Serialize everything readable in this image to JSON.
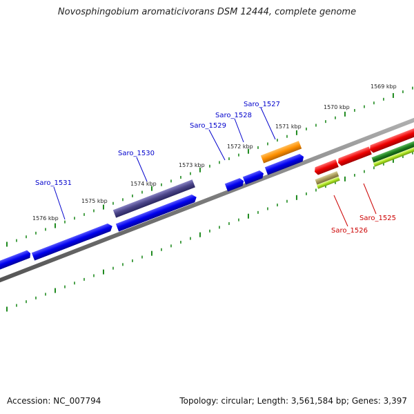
{
  "title": "Novosphingobium aromaticivorans DSM 12444, complete genome",
  "accession": "Accession: NC_007794",
  "topology": "Topology: circular; Length: 3,561,584 bp; Genes: 3,397",
  "colors": {
    "backbone": "#808080",
    "tick": "#1e8a1e",
    "label_plus": "#0000cc",
    "label_minus": "#cc0000"
  },
  "kbp_labels": [
    {
      "text": "1569 kbp"
    },
    {
      "text": "1570 kbp"
    },
    {
      "text": "1571 kbp"
    },
    {
      "text": "1572 kbp"
    },
    {
      "text": "1573 kbp"
    },
    {
      "text": "1574 kbp"
    },
    {
      "text": "1575 kbp"
    },
    {
      "text": "1576 kbp"
    }
  ],
  "gene_labels_plus": [
    {
      "text": "Saro_1527"
    },
    {
      "text": "Saro_1528"
    },
    {
      "text": "Saro_1529"
    },
    {
      "text": "Saro_1530"
    },
    {
      "text": "Saro_1531"
    }
  ],
  "gene_labels_minus": [
    {
      "text": "Saro_1525"
    },
    {
      "text": "Saro_1526"
    }
  ]
}
